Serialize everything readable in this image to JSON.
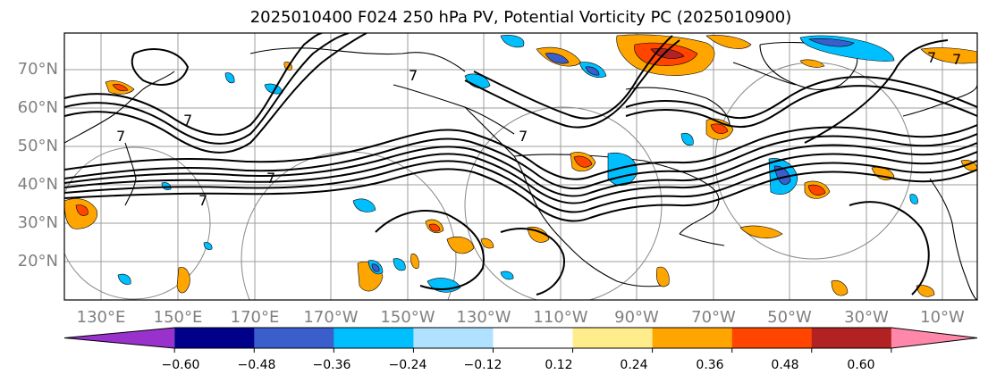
{
  "title": "2025010400 F024 250 hPa PV, Potential Vorticity PC (2025010900)",
  "lat_labels": [
    "70°N",
    "60°N",
    "50°N",
    "40°N",
    "30°N",
    "20°N"
  ],
  "lon_labels": [
    "130°E",
    "150°E",
    "170°E",
    "170°W",
    "150°W",
    "130°W",
    "110°W",
    "90°W",
    "70°W",
    "50°W",
    "30°W",
    "10°W"
  ],
  "colorbar": {
    "ticks": [
      "−0.60",
      "−0.48",
      "−0.36",
      "−0.24",
      "−0.12",
      "0.12",
      "0.24",
      "0.36",
      "0.48",
      "0.60"
    ],
    "colors": [
      "#9932cc",
      "#00008b",
      "#3a5fcd",
      "#00bfff",
      "#b0e2ff",
      "#ffffff",
      "#ffec8b",
      "#ffa500",
      "#ff4500",
      "#b22222",
      "#ff88aa"
    ]
  },
  "contour_labels": [
    "7",
    "7",
    "7",
    "7",
    "7",
    "7",
    "7",
    "7"
  ],
  "colors": {
    "text_axis": "#808080",
    "contour": "#000000",
    "grid": "#9e9e9e"
  }
}
